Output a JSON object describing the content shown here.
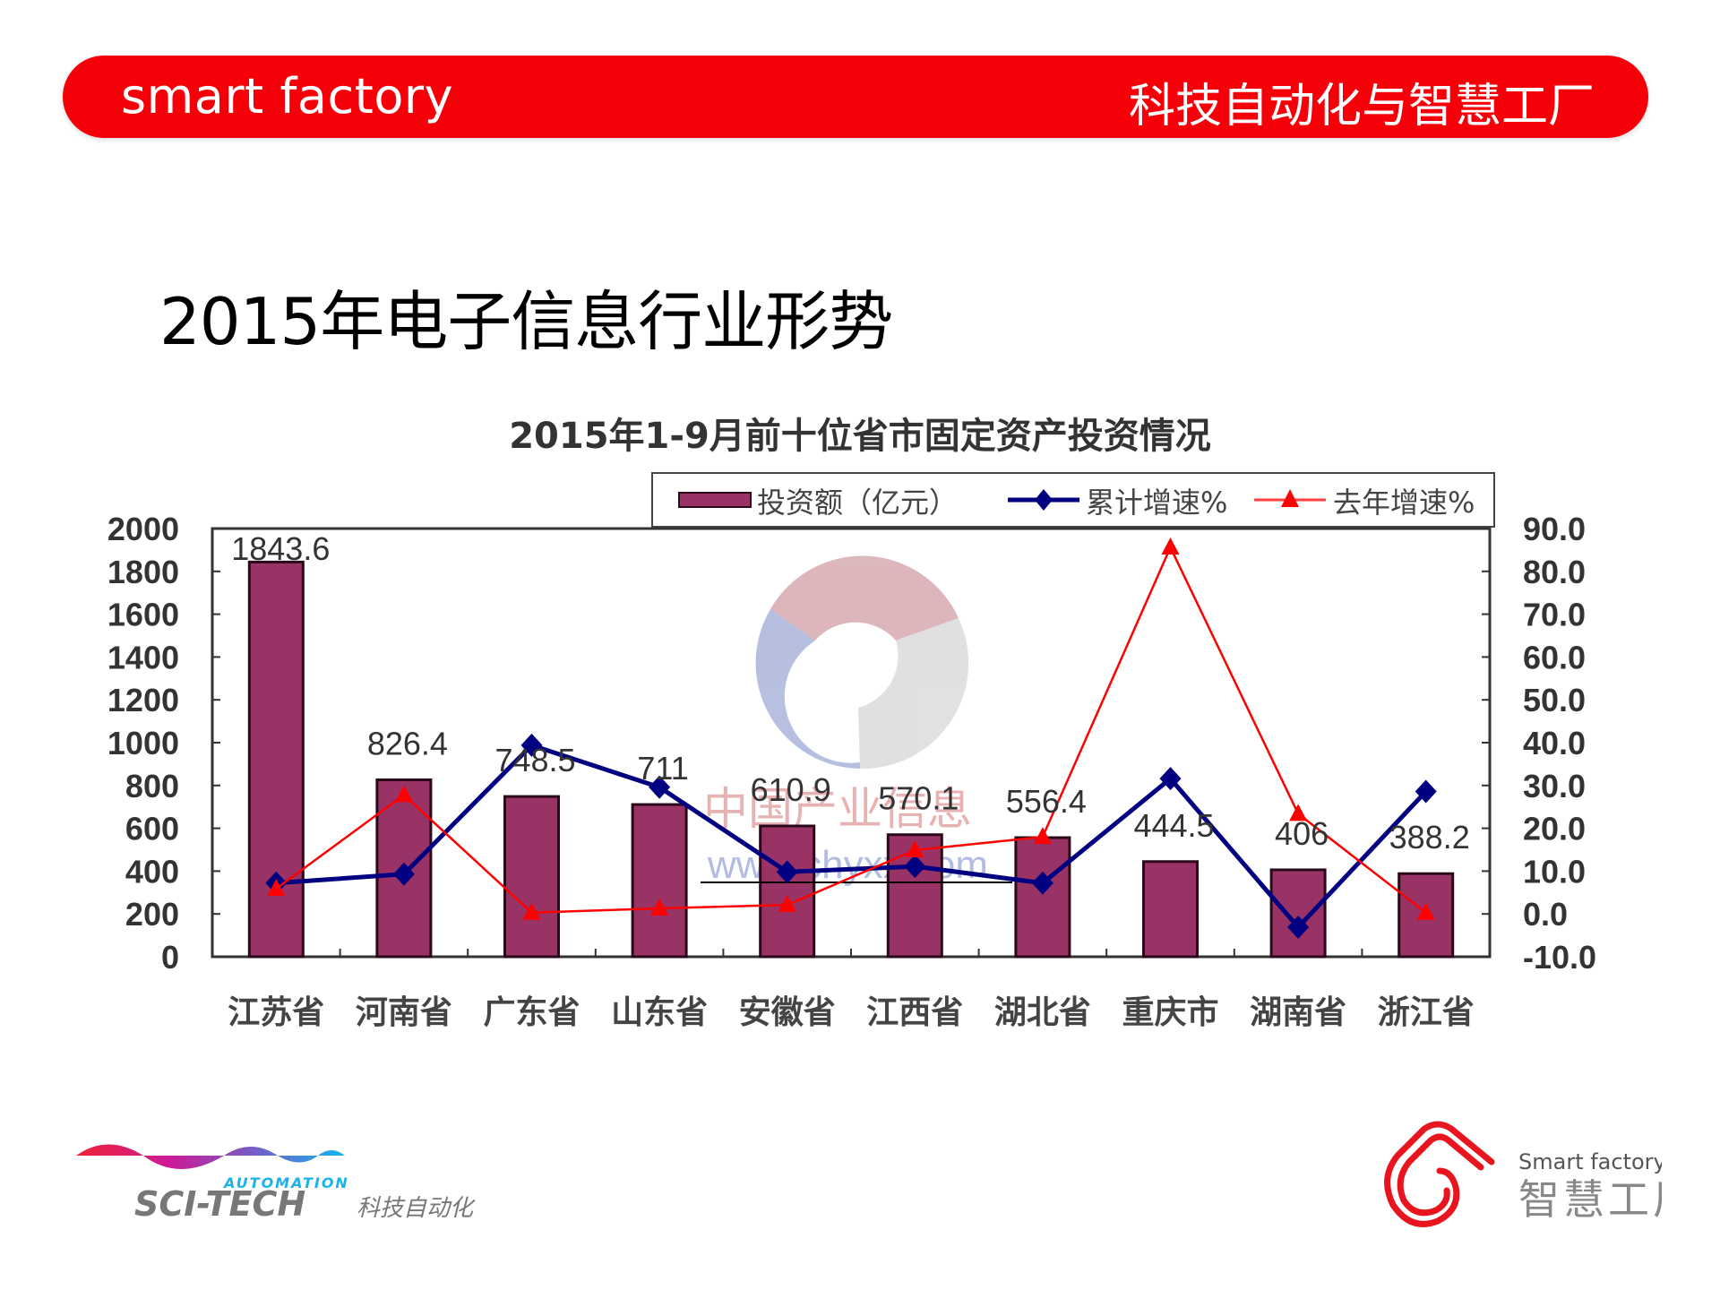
{
  "header": {
    "left_text": "smart factory",
    "right_text": "科技自动化与智慧工厂",
    "color": "#f50008"
  },
  "slide": {
    "title": "2015年电子信息行业形势"
  },
  "chart_data": {
    "type": "bar",
    "title": "2015年1-9月前十位省市固定资产投资情况",
    "categories": [
      "江苏省",
      "河南省",
      "广东省",
      "山东省",
      "安徽省",
      "江西省",
      "湖北省",
      "重庆市",
      "湖南省",
      "浙江省"
    ],
    "series": [
      {
        "name": "投资额（亿元）",
        "type": "bar",
        "axis": "left",
        "color": "#993366",
        "values": [
          1843.6,
          826.4,
          748.5,
          711,
          610.9,
          570.1,
          556.4,
          444.5,
          406,
          388.2
        ],
        "labels": [
          "1843.6",
          "826.4",
          "748.5",
          "711",
          "610.9",
          "570.1",
          "556.4",
          "444.5",
          "406",
          "388.2"
        ]
      },
      {
        "name": "累计增速%",
        "type": "line",
        "axis": "right",
        "marker": "diamond",
        "color": "#000080",
        "values": [
          7.2,
          9.3,
          39.4,
          29.6,
          9.8,
          11.1,
          7.2,
          31.6,
          -3.1,
          28.6
        ]
      },
      {
        "name": "去年增速%",
        "type": "line",
        "axis": "right",
        "marker": "triangle",
        "color": "#ff0000",
        "values": [
          5.9,
          27.8,
          0.3,
          1.3,
          2.1,
          14.9,
          18.0,
          85.6,
          23.4,
          0.3
        ]
      }
    ],
    "left_axis": {
      "min": 0,
      "max": 2000,
      "step": 200,
      "ticks": [
        "2000",
        "1800",
        "1600",
        "1400",
        "1200",
        "1000",
        "800",
        "600",
        "400",
        "200",
        "0"
      ]
    },
    "right_axis": {
      "min": -10,
      "max": 90,
      "step": 10,
      "ticks": [
        "90.0",
        "80.0",
        "70.0",
        "60.0",
        "50.0",
        "40.0",
        "30.0",
        "20.0",
        "10.0",
        "0.0",
        "-10.0"
      ]
    },
    "legend": [
      "投资额（亿元）",
      "累计增速%",
      "去年增速%"
    ],
    "legend_position": "top-right",
    "grid": false,
    "watermark": {
      "text": "中国产业信息",
      "url_text": "www.chyxx.com"
    }
  },
  "footer": {
    "left_logo": {
      "top_text": "AUTOMATION",
      "main_text": "SCI-TECH",
      "cn_text": "科技自动化"
    },
    "right_logo": {
      "en_text": "Smart factory",
      "cn_text": "智慧工厂"
    }
  }
}
